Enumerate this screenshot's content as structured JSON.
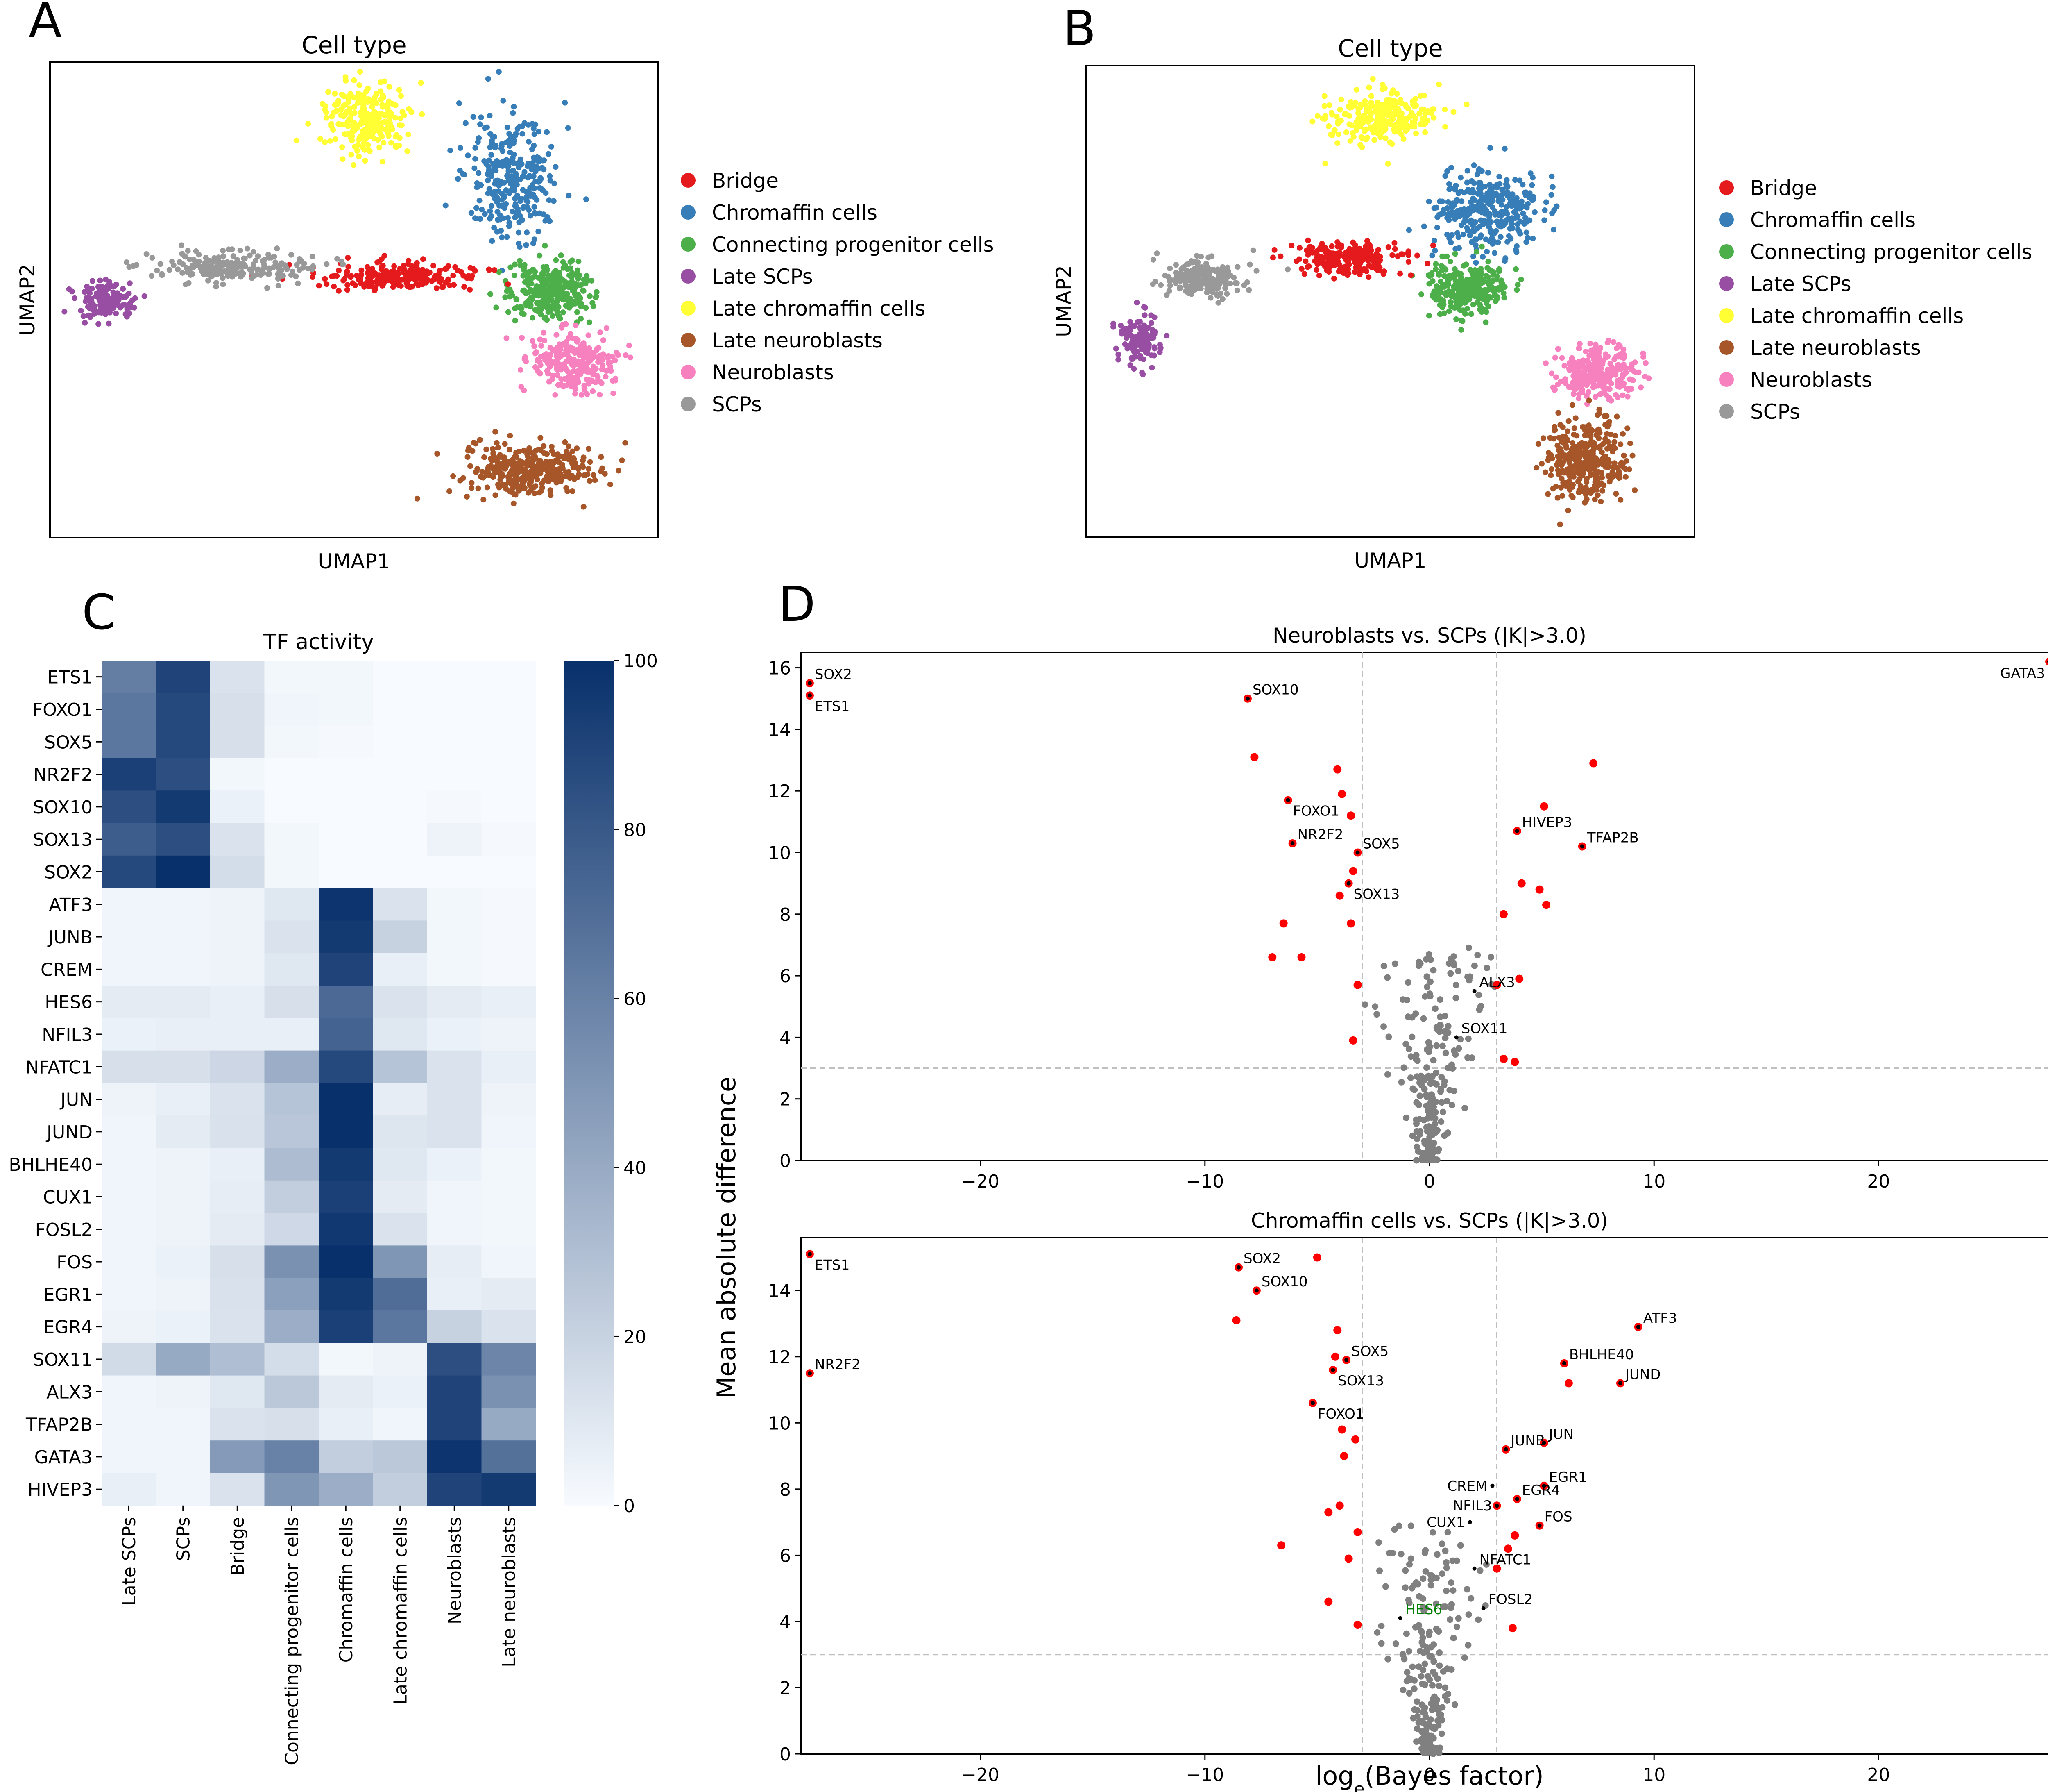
{
  "panel_labels": [
    "A",
    "B",
    "C",
    "D"
  ],
  "colors": {
    "Bridge": "#e41a1c",
    "Chromaffin cells": "#377eb8",
    "Connecting progenitor cells": "#4daf4a",
    "Late SCPs": "#984ea3",
    "Late chromaffin cells": "#ffff33",
    "Late neuroblasts": "#a65628",
    "Neuroblasts": "#f781bf",
    "SCPs": "#999999",
    "sig_point": "#ff0000",
    "nonsig_point": "#808080",
    "label_green": "#008000"
  },
  "umap": {
    "title": "Cell type",
    "xlabel": "UMAP1",
    "ylabel": "UMAP2",
    "legend": [
      "Bridge",
      "Chromaffin cells",
      "Connecting progenitor cells",
      "Late SCPs",
      "Late chromaffin cells",
      "Late neuroblasts",
      "Neuroblasts",
      "SCPs"
    ]
  },
  "chart_data": [
    {
      "type": "scatter",
      "panel": "A",
      "title": "Cell type",
      "xlabel": "UMAP1",
      "ylabel": "UMAP2",
      "legend_position": "right",
      "series": [
        {
          "name": "Late chromaffin cells",
          "cx": 0.52,
          "cy": 0.12,
          "sx": 0.06,
          "sy": 0.07,
          "n": 260
        },
        {
          "name": "Chromaffin cells",
          "cx": 0.76,
          "cy": 0.24,
          "sx": 0.07,
          "sy": 0.11,
          "n": 300
        },
        {
          "name": "Connecting progenitor cells",
          "cx": 0.82,
          "cy": 0.48,
          "sx": 0.06,
          "sy": 0.06,
          "n": 300
        },
        {
          "name": "Bridge",
          "cx": 0.58,
          "cy": 0.45,
          "sx": 0.12,
          "sy": 0.025,
          "n": 220
        },
        {
          "name": "SCPs",
          "cx": 0.3,
          "cy": 0.43,
          "sx": 0.12,
          "sy": 0.028,
          "n": 220
        },
        {
          "name": "Late SCPs",
          "cx": 0.09,
          "cy": 0.5,
          "sx": 0.04,
          "sy": 0.035,
          "n": 140
        },
        {
          "name": "Neuroblasts",
          "cx": 0.86,
          "cy": 0.63,
          "sx": 0.06,
          "sy": 0.06,
          "n": 260
        },
        {
          "name": "Late neuroblasts",
          "cx": 0.79,
          "cy": 0.86,
          "sx": 0.1,
          "sy": 0.05,
          "n": 340
        }
      ]
    },
    {
      "type": "scatter",
      "panel": "B",
      "title": "Cell type",
      "xlabel": "UMAP1",
      "ylabel": "UMAP2",
      "legend_position": "right",
      "series": [
        {
          "name": "Late chromaffin cells",
          "cx": 0.48,
          "cy": 0.11,
          "sx": 0.08,
          "sy": 0.05,
          "n": 260
        },
        {
          "name": "Chromaffin cells",
          "cx": 0.66,
          "cy": 0.31,
          "sx": 0.08,
          "sy": 0.08,
          "n": 320
        },
        {
          "name": "Connecting progenitor cells",
          "cx": 0.63,
          "cy": 0.47,
          "sx": 0.06,
          "sy": 0.05,
          "n": 280
        },
        {
          "name": "Bridge",
          "cx": 0.43,
          "cy": 0.41,
          "sx": 0.08,
          "sy": 0.03,
          "n": 220
        },
        {
          "name": "SCPs",
          "cx": 0.19,
          "cy": 0.45,
          "sx": 0.06,
          "sy": 0.035,
          "n": 200
        },
        {
          "name": "Late SCPs",
          "cx": 0.09,
          "cy": 0.58,
          "sx": 0.03,
          "sy": 0.05,
          "n": 130
        },
        {
          "name": "Neuroblasts",
          "cx": 0.84,
          "cy": 0.65,
          "sx": 0.06,
          "sy": 0.05,
          "n": 260
        },
        {
          "name": "Late neuroblasts",
          "cx": 0.82,
          "cy": 0.84,
          "sx": 0.06,
          "sy": 0.08,
          "n": 340
        }
      ]
    },
    {
      "type": "heatmap",
      "panel": "C",
      "title": "TF activity",
      "rows": [
        "ETS1",
        "FOXO1",
        "SOX5",
        "NR2F2",
        "SOX10",
        "SOX13",
        "SOX2",
        "ATF3",
        "JUNB",
        "CREM",
        "HES6",
        "NFIL3",
        "NFATC1",
        "JUN",
        "JUND",
        "BHLHE40",
        "CUX1",
        "FOSL2",
        "FOS",
        "EGR1",
        "EGR4",
        "SOX11",
        "ALX3",
        "TFAP2B",
        "GATA3",
        "HIVEP3"
      ],
      "columns": [
        "Late SCPs",
        "SCPs",
        "Bridge",
        "Connecting progenitor cells",
        "Chromaffin cells",
        "Late chromaffin cells",
        "Neuroblasts",
        "Late neuroblasts"
      ],
      "values": [
        [
          62,
          90,
          12,
          2,
          2,
          0,
          0,
          0
        ],
        [
          65,
          88,
          14,
          3,
          2,
          0,
          0,
          0
        ],
        [
          65,
          88,
          14,
          2,
          1,
          0,
          0,
          0
        ],
        [
          92,
          85,
          2,
          0,
          0,
          0,
          0,
          0
        ],
        [
          85,
          95,
          5,
          0,
          0,
          0,
          1,
          0
        ],
        [
          78,
          85,
          12,
          2,
          0,
          0,
          4,
          1
        ],
        [
          88,
          100,
          15,
          2,
          0,
          0,
          0,
          0
        ],
        [
          3,
          3,
          4,
          10,
          98,
          12,
          2,
          1
        ],
        [
          3,
          3,
          4,
          12,
          95,
          20,
          2,
          1
        ],
        [
          3,
          3,
          4,
          10,
          90,
          6,
          2,
          1
        ],
        [
          8,
          8,
          6,
          14,
          72,
          12,
          8,
          6
        ],
        [
          5,
          6,
          6,
          6,
          75,
          10,
          5,
          4
        ],
        [
          14,
          14,
          18,
          38,
          88,
          27,
          12,
          6
        ],
        [
          4,
          6,
          12,
          27,
          100,
          7,
          12,
          4
        ],
        [
          3,
          8,
          13,
          26,
          100,
          11,
          12,
          3
        ],
        [
          3,
          4,
          6,
          31,
          95,
          10,
          5,
          2
        ],
        [
          3,
          4,
          7,
          22,
          92,
          8,
          3,
          2
        ],
        [
          3,
          4,
          8,
          17,
          96,
          12,
          3,
          2
        ],
        [
          3,
          5,
          14,
          52,
          100,
          50,
          7,
          3
        ],
        [
          3,
          4,
          13,
          45,
          95,
          70,
          6,
          8
        ],
        [
          4,
          5,
          12,
          38,
          92,
          65,
          20,
          12
        ],
        [
          16,
          40,
          30,
          15,
          2,
          4,
          85,
          58
        ],
        [
          3,
          4,
          10,
          25,
          8,
          5,
          90,
          52
        ],
        [
          3,
          3,
          12,
          14,
          6,
          3,
          90,
          40
        ],
        [
          3,
          3,
          48,
          60,
          22,
          25,
          98,
          68
        ],
        [
          6,
          3,
          12,
          50,
          38,
          22,
          90,
          95
        ]
      ],
      "colorbar": {
        "min": 0,
        "max": 100,
        "ticks": [
          "100",
          "80",
          "60",
          "40",
          "20",
          "0"
        ]
      }
    },
    {
      "type": "scatter",
      "panel": "D-top",
      "title": "Neuroblasts vs. SCPs (|K|>3.0)",
      "xlim": [
        -28,
        28
      ],
      "ylim": [
        0,
        16.5
      ],
      "xticks": [
        "−20",
        "−10",
        "0",
        "10",
        "20"
      ],
      "yticks": [
        "0",
        "2",
        "4",
        "6",
        "8",
        "10",
        "12",
        "14",
        "16"
      ],
      "threshold_x": 3.0,
      "threshold_y": 3.0,
      "sig_points": [
        [
          -27.6,
          15.5
        ],
        [
          -27.6,
          15.1
        ],
        [
          -8.1,
          15.0
        ],
        [
          -7.8,
          13.1
        ],
        [
          -4.1,
          12.7
        ],
        [
          -3.9,
          11.9
        ],
        [
          -6.3,
          11.7
        ],
        [
          -3.5,
          11.2
        ],
        [
          -6.1,
          10.3
        ],
        [
          -3.2,
          10.0
        ],
        [
          -3.4,
          9.4
        ],
        [
          -3.6,
          9.0
        ],
        [
          -4.0,
          8.6
        ],
        [
          -6.5,
          7.7
        ],
        [
          -3.5,
          7.7
        ],
        [
          -7.0,
          6.6
        ],
        [
          -5.7,
          6.6
        ],
        [
          -3.2,
          5.7
        ],
        [
          -3.4,
          3.9
        ],
        [
          27.6,
          16.2
        ],
        [
          7.3,
          12.9
        ],
        [
          5.1,
          11.5
        ],
        [
          3.9,
          10.7
        ],
        [
          6.8,
          10.2
        ],
        [
          4.1,
          9.0
        ],
        [
          4.9,
          8.8
        ],
        [
          5.2,
          8.3
        ],
        [
          3.3,
          8.0
        ],
        [
          3.0,
          5.7
        ],
        [
          4.0,
          5.9
        ],
        [
          3.3,
          3.3
        ],
        [
          3.8,
          3.2
        ]
      ],
      "labels": [
        {
          "text": "SOX2",
          "x": -27.6,
          "y": 15.5
        },
        {
          "text": "ETS1",
          "x": -27.6,
          "y": 15.1
        },
        {
          "text": "SOX10",
          "x": -8.1,
          "y": 15.0
        },
        {
          "text": "FOXO1",
          "x": -6.3,
          "y": 11.7
        },
        {
          "text": "NR2F2",
          "x": -6.1,
          "y": 10.3
        },
        {
          "text": "SOX5",
          "x": -3.2,
          "y": 10.0
        },
        {
          "text": "SOX13",
          "x": -3.6,
          "y": 9.0
        },
        {
          "text": "GATA3",
          "x": 27.6,
          "y": 16.2
        },
        {
          "text": "HIVEP3",
          "x": 3.9,
          "y": 10.7
        },
        {
          "text": "TFAP2B",
          "x": 6.8,
          "y": 10.2
        },
        {
          "text": "ALX3",
          "x": 2.0,
          "y": 5.5
        },
        {
          "text": "SOX11",
          "x": 1.2,
          "y": 4.0
        }
      ]
    },
    {
      "type": "scatter",
      "panel": "D-bottom",
      "title": "Chromaffin cells vs. SCPs (|K|>3.0)",
      "xlabel": "log_e(Bayes factor)",
      "ylabel": "Mean absolute difference",
      "xlim": [
        -28,
        28
      ],
      "ylim": [
        0,
        15.6
      ],
      "xticks": [
        "−20",
        "−10",
        "0",
        "10",
        "20"
      ],
      "yticks": [
        "0",
        "2",
        "4",
        "6",
        "8",
        "10",
        "12",
        "14"
      ],
      "threshold_x": 3.0,
      "threshold_y": 3.0,
      "sig_points": [
        [
          -27.6,
          15.1
        ],
        [
          -27.6,
          11.5
        ],
        [
          -8.5,
          14.7
        ],
        [
          -7.7,
          14.0
        ],
        [
          -5.0,
          15.0
        ],
        [
          -8.6,
          13.1
        ],
        [
          -4.1,
          12.8
        ],
        [
          -4.2,
          12.0
        ],
        [
          -3.7,
          11.9
        ],
        [
          -4.3,
          11.6
        ],
        [
          -5.2,
          10.6
        ],
        [
          -3.9,
          9.8
        ],
        [
          -3.3,
          9.5
        ],
        [
          -3.8,
          9.0
        ],
        [
          -4.0,
          7.5
        ],
        [
          -4.5,
          7.3
        ],
        [
          -3.2,
          6.7
        ],
        [
          -6.6,
          6.3
        ],
        [
          -3.6,
          5.9
        ],
        [
          -4.5,
          4.6
        ],
        [
          -3.2,
          3.9
        ],
        [
          3.4,
          9.2
        ],
        [
          5.1,
          9.4
        ],
        [
          5.1,
          8.1
        ],
        [
          3.9,
          7.7
        ],
        [
          3.0,
          7.5
        ],
        [
          4.9,
          6.9
        ],
        [
          3.8,
          6.6
        ],
        [
          3.5,
          6.2
        ],
        [
          3.0,
          5.6
        ],
        [
          6.0,
          11.8
        ],
        [
          6.2,
          11.2
        ],
        [
          9.3,
          12.9
        ],
        [
          8.5,
          11.2
        ],
        [
          3.7,
          3.8
        ]
      ],
      "labels": [
        {
          "text": "ETS1",
          "x": -27.6,
          "y": 15.1
        },
        {
          "text": "NR2F2",
          "x": -27.6,
          "y": 11.5
        },
        {
          "text": "SOX2",
          "x": -8.5,
          "y": 14.7
        },
        {
          "text": "SOX10",
          "x": -7.7,
          "y": 14.0
        },
        {
          "text": "SOX5",
          "x": -3.7,
          "y": 11.9
        },
        {
          "text": "SOX13",
          "x": -4.3,
          "y": 11.6
        },
        {
          "text": "FOXO1",
          "x": -5.2,
          "y": 10.6
        },
        {
          "text": "ATF3",
          "x": 9.3,
          "y": 12.9
        },
        {
          "text": "BHLHE40",
          "x": 6.0,
          "y": 11.8
        },
        {
          "text": "JUND",
          "x": 8.5,
          "y": 11.2
        },
        {
          "text": "JUNB",
          "x": 3.4,
          "y": 9.2
        },
        {
          "text": "JUN",
          "x": 5.1,
          "y": 9.4
        },
        {
          "text": "EGR1",
          "x": 5.1,
          "y": 8.1
        },
        {
          "text": "CREM",
          "x": 2.8,
          "y": 8.1
        },
        {
          "text": "EGR4",
          "x": 3.9,
          "y": 7.7
        },
        {
          "text": "NFIL3",
          "x": 3.0,
          "y": 7.5
        },
        {
          "text": "CUX1",
          "x": 1.8,
          "y": 7.0
        },
        {
          "text": "FOS",
          "x": 4.9,
          "y": 6.9
        },
        {
          "text": "NFATC1",
          "x": 2.0,
          "y": 5.6
        },
        {
          "text": "FOSL2",
          "x": 2.4,
          "y": 4.4
        },
        {
          "text": "HES6",
          "x": -1.3,
          "y": 4.1
        }
      ]
    }
  ]
}
